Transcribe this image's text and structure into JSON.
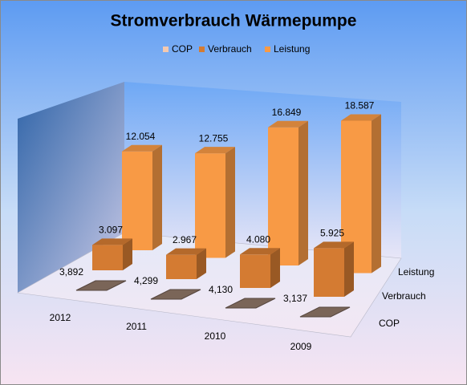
{
  "chart_data": {
    "type": "bar3d",
    "title": "Stromverbrauch Wärmepumpe",
    "categories": [
      "2012",
      "2011",
      "2010",
      "2009"
    ],
    "series": [
      {
        "name": "COP",
        "color": "#f4c9b0",
        "values": [
          3.892,
          4.299,
          4.13,
          3.137
        ],
        "value_labels": [
          "3,892",
          "4,299",
          "4,130",
          "3,137"
        ]
      },
      {
        "name": "Verbrauch",
        "color": "#d47b32",
        "values": [
          3097,
          2967,
          4080,
          5925
        ],
        "value_labels": [
          "3.097",
          "2.967",
          "4.080",
          "5.925"
        ]
      },
      {
        "name": "Leistung",
        "color": "#f89a45",
        "values": [
          12054,
          12755,
          16849,
          18587
        ],
        "value_labels": [
          "12.054",
          "12.755",
          "16.849",
          "18.587"
        ]
      }
    ],
    "legend": "top"
  }
}
